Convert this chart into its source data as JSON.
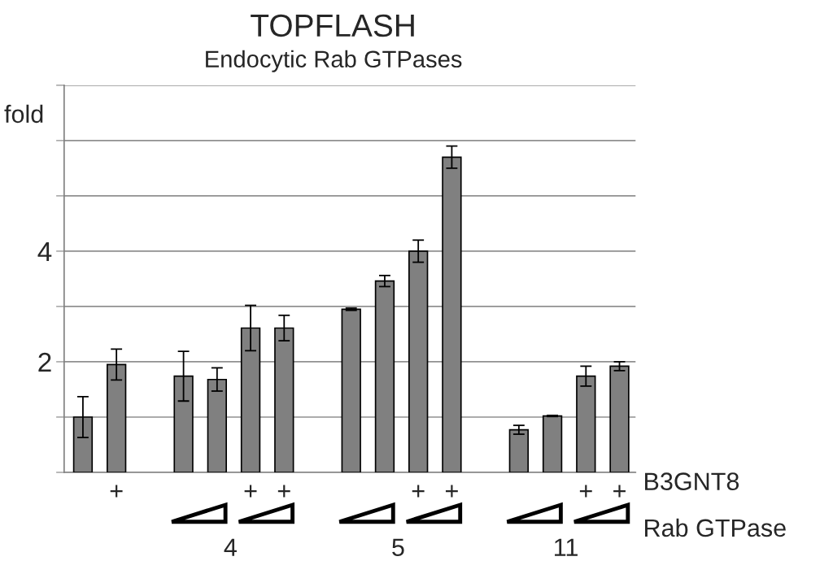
{
  "chart_data": {
    "type": "bar",
    "title": "TOPFLASH",
    "subtitle": "Endocytic Rab GTPases",
    "ylabel": "fold",
    "categories": [
      null,
      "+",
      null,
      null,
      null,
      "+",
      "+",
      null,
      null,
      null,
      "+",
      "+",
      null,
      null,
      null,
      "+",
      "+"
    ],
    "values": [
      1.0,
      1.95,
      null,
      1.74,
      1.68,
      2.61,
      2.61,
      null,
      2.95,
      3.46,
      4.0,
      5.7,
      null,
      0.77,
      1.02,
      1.74,
      1.92
    ],
    "errors": [
      0.37,
      0.28,
      null,
      0.45,
      0.21,
      0.41,
      0.23,
      null,
      0.02,
      0.1,
      0.2,
      0.2,
      null,
      0.08,
      0.01,
      0.18,
      0.08
    ],
    "color": "#808080",
    "ylim": [
      0,
      7
    ],
    "yticks": [
      {
        "value": 0,
        "label": null
      },
      {
        "value": 1,
        "label": null
      },
      2,
      {
        "value": 3,
        "label": null
      },
      4,
      {
        "value": 5,
        "label": null
      },
      {
        "value": 6,
        "label": null
      },
      {
        "value": 7,
        "label": null
      }
    ],
    "grid": "y",
    "annotations": [
      "B3GNT8",
      "Rab GTPase",
      "4",
      "5",
      "11"
    ]
  }
}
